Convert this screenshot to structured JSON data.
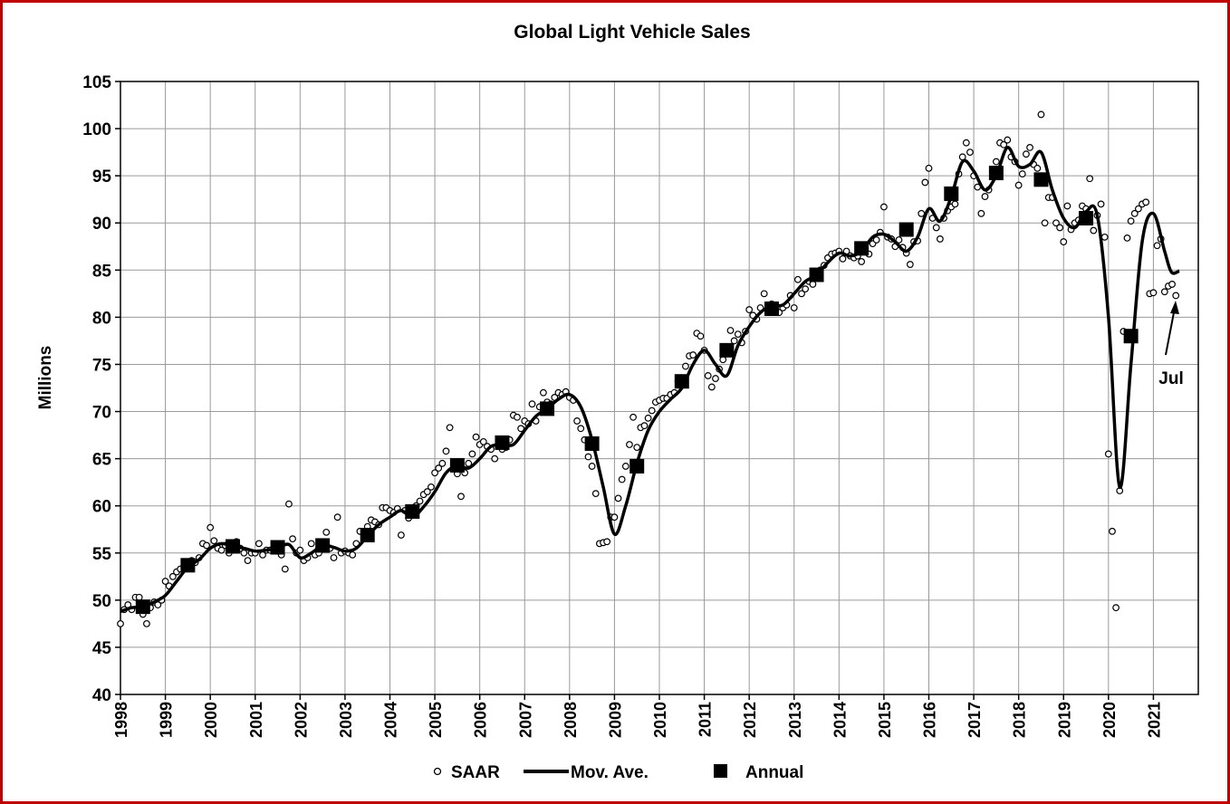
{
  "chart_data": {
    "type": "line",
    "title": "Global Light Vehicle Sales",
    "xlabel": "",
    "ylabel": "Millions",
    "xlim": [
      1998,
      2022
    ],
    "ylim": [
      40,
      105
    ],
    "grid": true,
    "x_ticks": [
      "1998",
      "1999",
      "2000",
      "2001",
      "2002",
      "2003",
      "2004",
      "2005",
      "2006",
      "2007",
      "2008",
      "2009",
      "2010",
      "2011",
      "2012",
      "2013",
      "2014",
      "2015",
      "2016",
      "2017",
      "2018",
      "2019",
      "2020",
      "2021"
    ],
    "y_ticks": [
      "40",
      "45",
      "50",
      "55",
      "60",
      "65",
      "70",
      "75",
      "80",
      "85",
      "90",
      "95",
      "100",
      "105"
    ],
    "legend": {
      "placement": "bottom",
      "entries": [
        "SAAR",
        "Mov. Ave.",
        "Annual"
      ]
    },
    "annotation": {
      "text": "Jul",
      "points_to": [
        2021.5,
        82.3
      ]
    },
    "series": [
      {
        "name": "SAAR",
        "style": "open-circle",
        "x_start": 1998.0,
        "x_step_months": 1,
        "values": [
          47.5,
          49,
          49.5,
          49,
          50.3,
          50.3,
          48.5,
          47.5,
          49.2,
          49.8,
          49.5,
          50,
          52,
          51.5,
          52.5,
          53,
          53.3,
          53.5,
          53.7,
          54.2,
          54,
          54.5,
          56,
          55.8,
          57.7,
          56.3,
          55.5,
          55.3,
          55.8,
          55,
          55.6,
          56.2,
          55.5,
          55,
          54.2,
          55,
          55,
          56,
          54.8,
          55.3,
          55.3,
          55.5,
          55.2,
          54.8,
          53.3,
          60.2,
          56.5,
          55,
          55.3,
          54.2,
          54.5,
          56,
          54.8,
          55,
          55.7,
          57.2,
          55.5,
          54.5,
          58.8,
          55,
          55.2,
          55,
          54.8,
          56,
          57.3,
          57,
          57.8,
          58.5,
          58.3,
          58,
          59.8,
          59.8,
          59.5,
          59.3,
          59.7,
          56.9,
          59.5,
          58.7,
          59.3,
          60,
          60.5,
          61.2,
          61.5,
          62,
          63.5,
          64,
          64.5,
          65.8,
          68.3,
          64.2,
          63.4,
          61,
          63.5,
          64.5,
          65.5,
          67.3,
          66.5,
          66.8,
          66.3,
          66,
          65,
          66.8,
          66,
          66.2,
          67,
          69.6,
          69.4,
          68.2,
          69,
          68.7,
          70.8,
          69,
          70.5,
          72,
          71,
          70.8,
          71.5,
          72,
          71.8,
          72.1,
          71.5,
          71.2,
          69,
          68.2,
          67,
          65.2,
          64.2,
          61.3,
          56,
          56.1,
          56.2,
          58.8,
          58.8,
          60.8,
          62.8,
          64.2,
          66.5,
          69.4,
          66.2,
          68.3,
          68.5,
          69.3,
          70.1,
          71,
          71.2,
          71.4,
          71.4,
          71.8,
          72,
          73.2,
          73.2,
          74.8,
          75.9,
          76,
          78.3,
          78,
          76.5,
          73.8,
          72.6,
          73.5,
          74.5,
          75.5,
          76.5,
          78.6,
          77.5,
          78.2,
          77.3,
          78.5,
          80.8,
          80.2,
          79.8,
          81,
          82.5,
          80.8,
          81.4,
          81.2,
          80.5,
          81,
          81.3,
          82.3,
          81,
          84,
          82.5,
          83,
          83.8,
          83.5,
          84.2,
          85,
          85.5,
          86.3,
          86.7,
          86.8,
          87,
          86.2,
          87,
          86.5,
          86.3,
          86.5,
          85.9,
          87.2,
          86.7,
          87.8,
          88.2,
          89,
          91.7,
          88.5,
          88.3,
          87.5,
          88.2,
          87.4,
          86.8,
          85.6,
          88,
          88.1,
          91,
          94.3,
          95.8,
          90.5,
          89.5,
          88.3,
          90.5,
          91.3,
          91.7,
          92,
          95.2,
          97,
          98.5,
          97.5,
          95,
          93.8,
          91,
          92.8,
          93.5,
          95.5,
          96.5,
          98.5,
          98.3,
          98.8,
          97,
          96.5,
          94,
          95.2,
          97.3,
          98,
          96.2,
          95.8,
          101.5,
          90,
          92.7,
          92.7,
          90,
          89.5,
          88,
          91.8,
          89.3,
          90,
          90.3,
          91.8,
          91.5,
          94.7,
          89.2,
          90.8,
          92,
          88.5,
          65.5,
          57.3,
          49.2,
          61.6,
          78.5,
          88.4,
          90.2,
          91,
          91.5,
          92,
          92.2,
          82.5,
          82.6,
          87.6,
          88.3,
          82.7,
          83.3,
          83.5,
          82.3
        ]
      },
      {
        "name": "Mov. Ave.",
        "style": "line",
        "points": [
          [
            1998.0,
            48.8
          ],
          [
            1998.25,
            49.2
          ],
          [
            1998.5,
            49.3
          ],
          [
            1998.75,
            49.8
          ],
          [
            1999.0,
            50.5
          ],
          [
            1999.25,
            52
          ],
          [
            1999.5,
            53.5
          ],
          [
            1999.75,
            54.3
          ],
          [
            2000.0,
            55.5
          ],
          [
            2000.25,
            56
          ],
          [
            2000.5,
            55.7
          ],
          [
            2000.75,
            55.5
          ],
          [
            2001.0,
            55.2
          ],
          [
            2001.25,
            55.3
          ],
          [
            2001.5,
            55.5
          ],
          [
            2001.75,
            55.9
          ],
          [
            2002.0,
            54.5
          ],
          [
            2002.25,
            55
          ],
          [
            2002.5,
            55.8
          ],
          [
            2002.75,
            55.6
          ],
          [
            2003.0,
            55.2
          ],
          [
            2003.25,
            55.5
          ],
          [
            2003.5,
            56.8
          ],
          [
            2003.75,
            58
          ],
          [
            2004.0,
            58.8
          ],
          [
            2004.25,
            59.5
          ],
          [
            2004.5,
            58.8
          ],
          [
            2004.75,
            59.9
          ],
          [
            2005.0,
            61.5
          ],
          [
            2005.25,
            63.5
          ],
          [
            2005.5,
            64.3
          ],
          [
            2005.75,
            64
          ],
          [
            2006.0,
            65
          ],
          [
            2006.25,
            66.3
          ],
          [
            2006.5,
            66.5
          ],
          [
            2006.75,
            66.5
          ],
          [
            2007.0,
            68
          ],
          [
            2007.25,
            69.5
          ],
          [
            2007.5,
            70.3
          ],
          [
            2007.75,
            71.3
          ],
          [
            2008.0,
            71.8
          ],
          [
            2008.25,
            70.5
          ],
          [
            2008.5,
            67
          ],
          [
            2008.75,
            62
          ],
          [
            2009.0,
            57
          ],
          [
            2009.25,
            60
          ],
          [
            2009.5,
            64.5
          ],
          [
            2009.75,
            68
          ],
          [
            2010.0,
            70
          ],
          [
            2010.25,
            71.3
          ],
          [
            2010.5,
            72.5
          ],
          [
            2010.75,
            75
          ],
          [
            2011.0,
            76.5
          ],
          [
            2011.25,
            75
          ],
          [
            2011.5,
            73.8
          ],
          [
            2011.75,
            77
          ],
          [
            2012.0,
            79
          ],
          [
            2012.25,
            80.5
          ],
          [
            2012.5,
            81.2
          ],
          [
            2012.75,
            81.3
          ],
          [
            2013.0,
            82.5
          ],
          [
            2013.25,
            83.8
          ],
          [
            2013.5,
            84.5
          ],
          [
            2013.75,
            85.8
          ],
          [
            2014.0,
            86.8
          ],
          [
            2014.25,
            86.5
          ],
          [
            2014.5,
            87
          ],
          [
            2014.75,
            88.5
          ],
          [
            2015.0,
            88.8
          ],
          [
            2015.25,
            88
          ],
          [
            2015.5,
            87
          ],
          [
            2015.75,
            88.5
          ],
          [
            2016.0,
            91.5
          ],
          [
            2016.25,
            90.2
          ],
          [
            2016.5,
            92.8
          ],
          [
            2016.75,
            96.5
          ],
          [
            2017.0,
            95.5
          ],
          [
            2017.25,
            93.5
          ],
          [
            2017.5,
            95
          ],
          [
            2017.75,
            98
          ],
          [
            2018.0,
            96
          ],
          [
            2018.25,
            96.2
          ],
          [
            2018.5,
            97.5
          ],
          [
            2018.75,
            93.5
          ],
          [
            2019.0,
            90.5
          ],
          [
            2019.25,
            89.5
          ],
          [
            2019.5,
            91.2
          ],
          [
            2019.75,
            90.8
          ],
          [
            2020.0,
            80
          ],
          [
            2020.25,
            62
          ],
          [
            2020.5,
            75
          ],
          [
            2020.75,
            88
          ],
          [
            2021.0,
            91
          ],
          [
            2021.25,
            87
          ],
          [
            2021.4,
            84.8
          ],
          [
            2021.58,
            84.9
          ]
        ]
      },
      {
        "name": "Annual",
        "style": "filled-square",
        "points": [
          [
            1998.5,
            49.3
          ],
          [
            1999.5,
            53.7
          ],
          [
            2000.5,
            55.7
          ],
          [
            2001.5,
            55.6
          ],
          [
            2002.5,
            55.8
          ],
          [
            2003.5,
            56.9
          ],
          [
            2004.5,
            59.4
          ],
          [
            2005.5,
            64.3
          ],
          [
            2006.5,
            66.7
          ],
          [
            2007.5,
            70.3
          ],
          [
            2008.5,
            66.6
          ],
          [
            2009.5,
            64.2
          ],
          [
            2010.5,
            73.2
          ],
          [
            2011.5,
            76.5
          ],
          [
            2012.5,
            80.9
          ],
          [
            2013.5,
            84.5
          ],
          [
            2014.5,
            87.3
          ],
          [
            2015.5,
            89.3
          ],
          [
            2016.5,
            93.1
          ],
          [
            2017.5,
            95.3
          ],
          [
            2018.5,
            94.6
          ],
          [
            2019.5,
            90.5
          ],
          [
            2020.5,
            78.0
          ]
        ]
      }
    ]
  }
}
